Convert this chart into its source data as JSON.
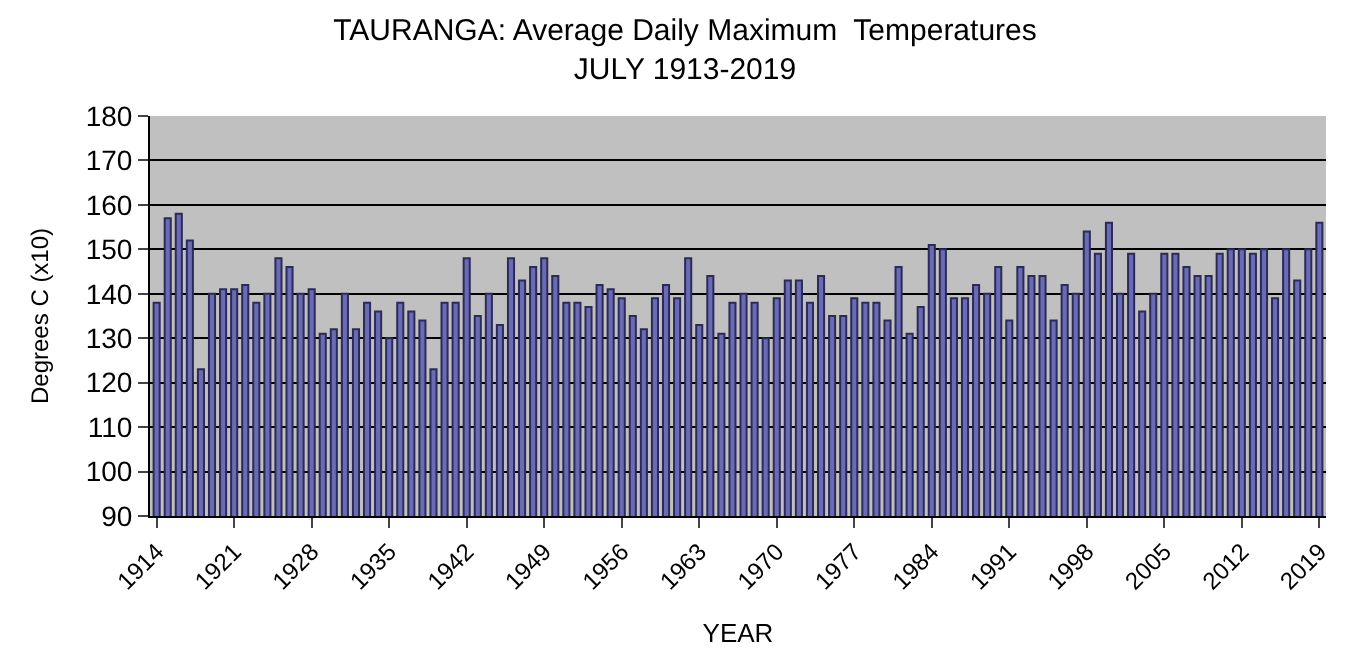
{
  "chart_data": {
    "type": "bar",
    "title": "TAURANGA: Average Daily Maximum  Temperatures\nJULY 1913-2019",
    "xlabel": "YEAR",
    "ylabel": "Degrees C (x10)",
    "categories": [
      "1914",
      null,
      null,
      null,
      null,
      null,
      null,
      "1921",
      null,
      null,
      null,
      null,
      null,
      null,
      "1928",
      null,
      null,
      null,
      null,
      null,
      null,
      "1935",
      null,
      null,
      null,
      null,
      null,
      null,
      "1942",
      null,
      null,
      null,
      null,
      null,
      null,
      "1949",
      null,
      null,
      null,
      null,
      null,
      null,
      "1956",
      null,
      null,
      null,
      null,
      null,
      null,
      "1963",
      null,
      null,
      null,
      null,
      null,
      null,
      "1970",
      null,
      null,
      null,
      null,
      null,
      null,
      "1977",
      null,
      null,
      null,
      null,
      null,
      null,
      "1984",
      null,
      null,
      null,
      null,
      null,
      null,
      "1991",
      null,
      null,
      null,
      null,
      null,
      null,
      "1998",
      null,
      null,
      null,
      null,
      null,
      null,
      "2005",
      null,
      null,
      null,
      null,
      null,
      null,
      "2012",
      null,
      null,
      null,
      null,
      null,
      null,
      "2019"
    ],
    "values": [
      138,
      157,
      158,
      152,
      123,
      140,
      141,
      141,
      142,
      138,
      140,
      148,
      146,
      140,
      141,
      131,
      132,
      140,
      132,
      138,
      136,
      130,
      138,
      136,
      134,
      123,
      138,
      138,
      148,
      135,
      140,
      133,
      148,
      143,
      146,
      148,
      144,
      138,
      138,
      137,
      142,
      141,
      139,
      135,
      132,
      139,
      142,
      139,
      148,
      133,
      144,
      131,
      138,
      140,
      138,
      130,
      139,
      143,
      143,
      138,
      144,
      135,
      135,
      139,
      138,
      138,
      134,
      146,
      131,
      137,
      151,
      150,
      139,
      139,
      142,
      140,
      146,
      134,
      146,
      144,
      144,
      134,
      142,
      140,
      154,
      149,
      156,
      140,
      149,
      136,
      140,
      149,
      149,
      146,
      144,
      144,
      149,
      150,
      150,
      149,
      150,
      139,
      150,
      143,
      150,
      156
    ],
    "color": "#6b6bb5",
    "ylim": [
      90,
      180
    ],
    "yticks": [
      90,
      100,
      110,
      120,
      130,
      140,
      150,
      160,
      170,
      180
    ],
    "grid": "y",
    "legend": false
  }
}
